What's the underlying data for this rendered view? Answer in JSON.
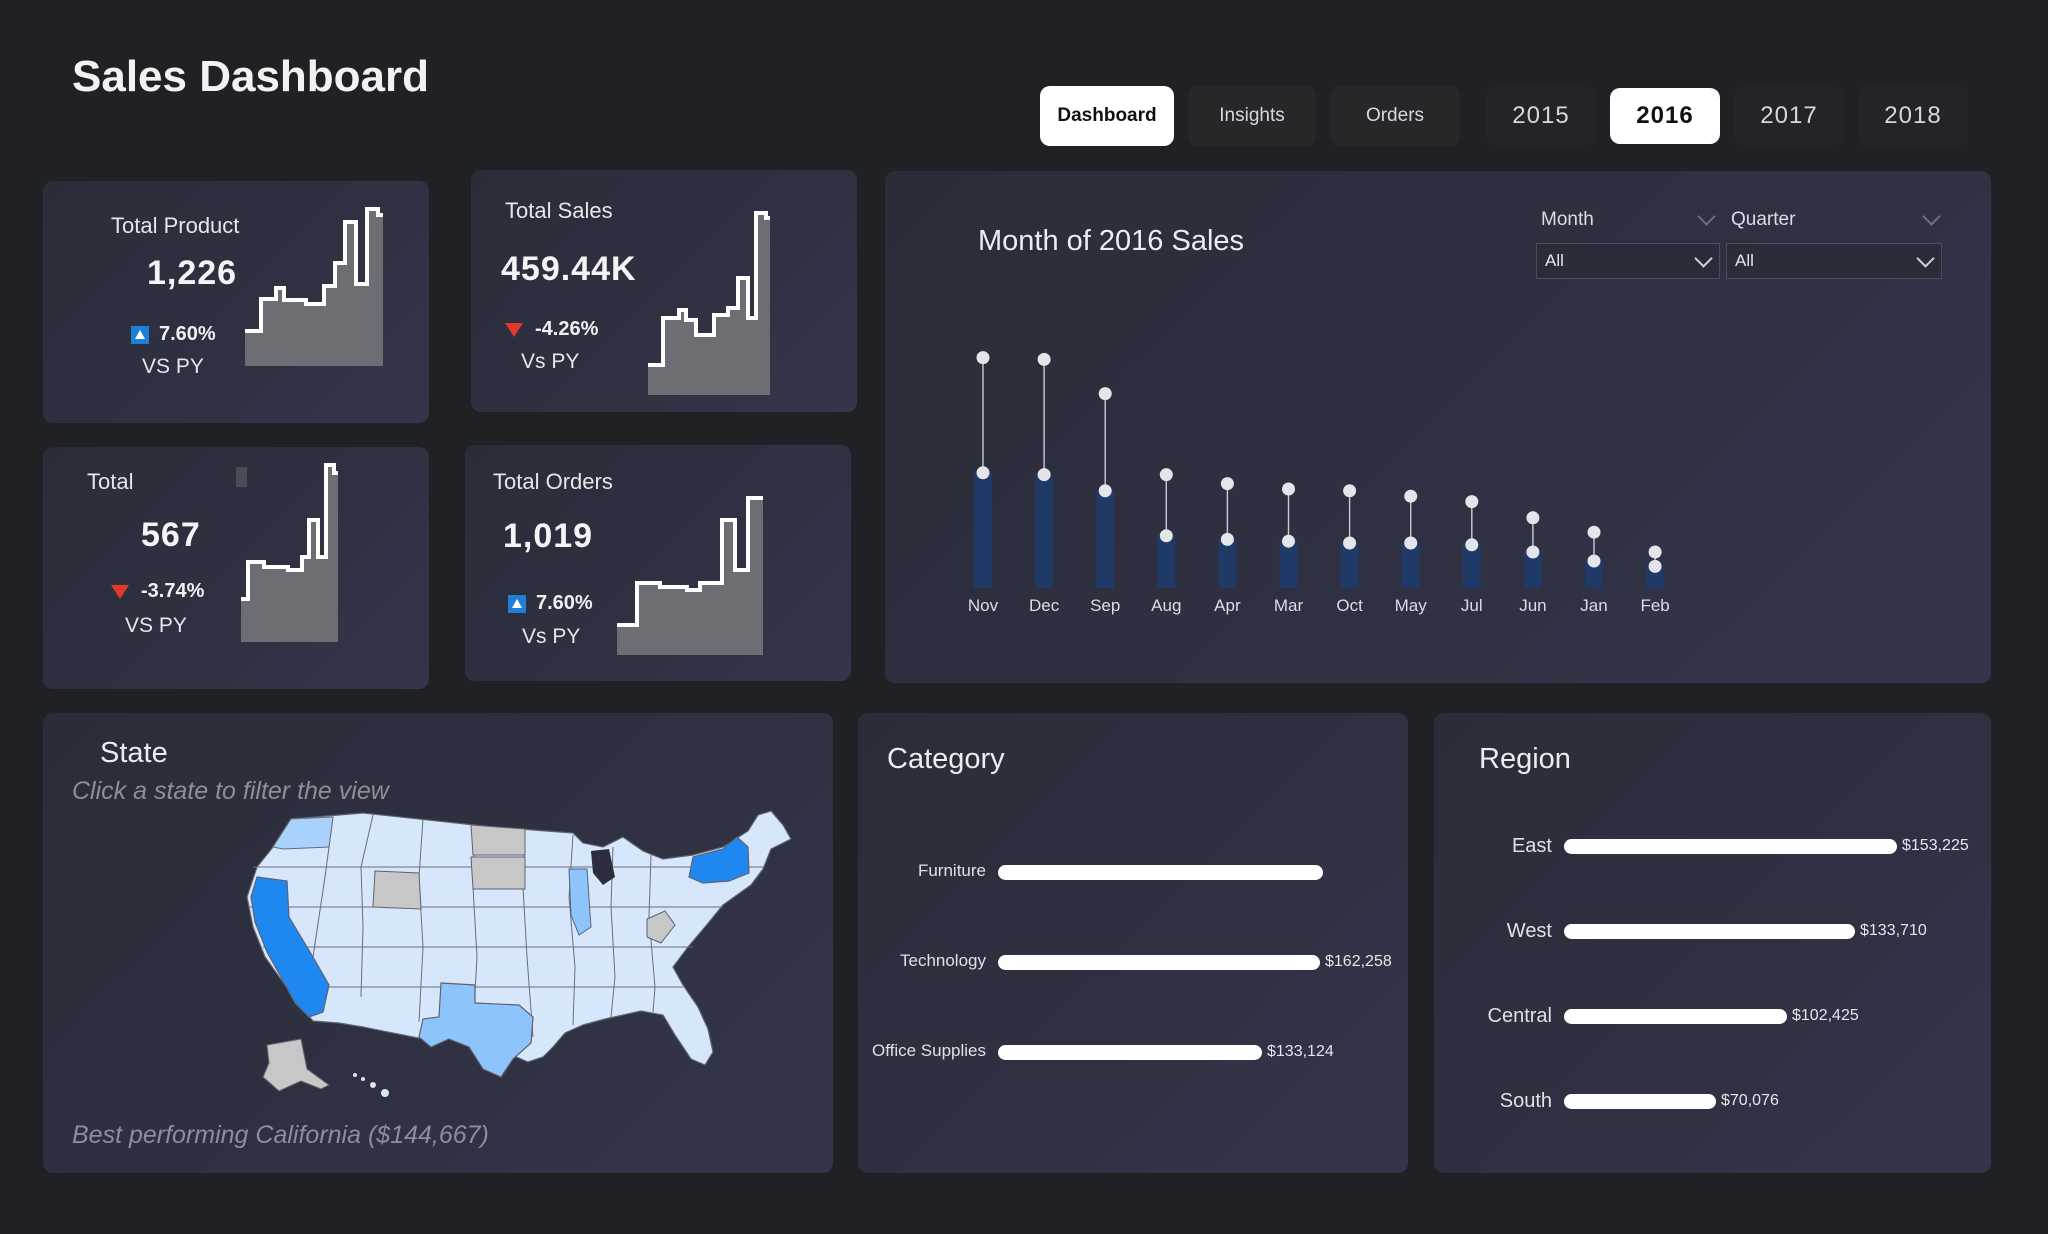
{
  "header": {
    "title": "Sales Dashboard"
  },
  "nav": {
    "tabs": [
      {
        "label": "Dashboard",
        "active": true
      },
      {
        "label": "Insights",
        "active": false
      },
      {
        "label": "Orders",
        "active": false
      }
    ],
    "years": [
      {
        "label": "2015",
        "active": false
      },
      {
        "label": "2016",
        "active": true
      },
      {
        "label": "2017",
        "active": false
      },
      {
        "label": "2018",
        "active": false
      }
    ]
  },
  "kpis": {
    "total_product": {
      "label": "Total Product",
      "value": "1,226",
      "delta": "7.60%",
      "direction": "up",
      "vs": "VS PY"
    },
    "total_sales": {
      "label": "Total Sales",
      "value": "459.44K",
      "delta": "-4.26%",
      "direction": "down",
      "vs": "Vs PY"
    },
    "total": {
      "label": "Total",
      "value": "567",
      "delta": "-3.74%",
      "direction": "down",
      "vs": "VS PY"
    },
    "total_orders": {
      "label": "Total Orders",
      "value": "1,019",
      "delta": "7.60%",
      "direction": "up",
      "vs": "Vs PY"
    }
  },
  "monthly": {
    "title": "Month of 2016 Sales",
    "filters": {
      "month": {
        "label": "Month",
        "value": "All"
      },
      "quarter": {
        "label": "Quarter",
        "value": "All"
      }
    }
  },
  "state": {
    "title": "State",
    "subtitle": "Click a state to filter the view",
    "footer": "Best performing California ($144,667)"
  },
  "category": {
    "title": "Category",
    "items": [
      {
        "label": "Furniture",
        "value": 164000,
        "value_label": ""
      },
      {
        "label": "Technology",
        "value": 162258,
        "value_label": "$162,258"
      },
      {
        "label": "Office Supplies",
        "value": 133124,
        "value_label": "$133,124"
      }
    ]
  },
  "region": {
    "title": "Region",
    "items": [
      {
        "label": "East",
        "value": 153225,
        "value_label": "$153,225"
      },
      {
        "label": "West",
        "value": 133710,
        "value_label": "$133,710"
      },
      {
        "label": "Central",
        "value": 102425,
        "value_label": "$102,425"
      },
      {
        "label": "South",
        "value": 70076,
        "value_label": "$70,076"
      }
    ]
  },
  "colors": {
    "accent_blue": "#1e7fd9",
    "down_red": "#e3372b",
    "bar_navy": "#1f3a66",
    "map_light": "#d6e6fb",
    "map_mid": "#8cc4fb",
    "map_top": "#1e88f0",
    "map_none": "#c7c7c7"
  },
  "chart_data": [
    {
      "type": "bar",
      "title": "Month of 2016 Sales",
      "categories": [
        "Nov",
        "Dec",
        "Sep",
        "Aug",
        "Apr",
        "Mar",
        "Oct",
        "May",
        "Jul",
        "Jun",
        "Jan",
        "Feb"
      ],
      "series": [
        {
          "values": [
            64,
            63,
            54,
            29,
            27,
            26,
            25,
            25,
            24,
            20,
            15,
            12
          ]
        },
        {
          "values": [
            128,
            127,
            108,
            63,
            58,
            55,
            54,
            51,
            48,
            39,
            31,
            20
          ]
        }
      ],
      "ylim": [
        0,
        135
      ]
    }
  ]
}
